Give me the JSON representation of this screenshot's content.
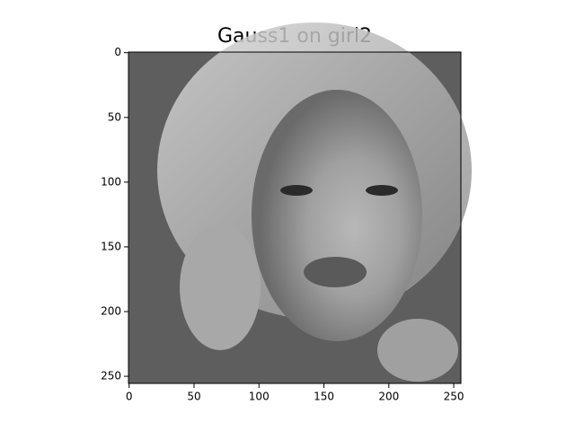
{
  "chart_data": {
    "type": "image",
    "title": "Gauss1 on girl2",
    "xlim": [
      -0.5,
      255.5
    ],
    "ylim": [
      255.5,
      -0.5
    ],
    "xticks": [
      0,
      50,
      100,
      150,
      200,
      250
    ],
    "yticks": [
      0,
      50,
      100,
      150,
      200,
      250
    ]
  }
}
